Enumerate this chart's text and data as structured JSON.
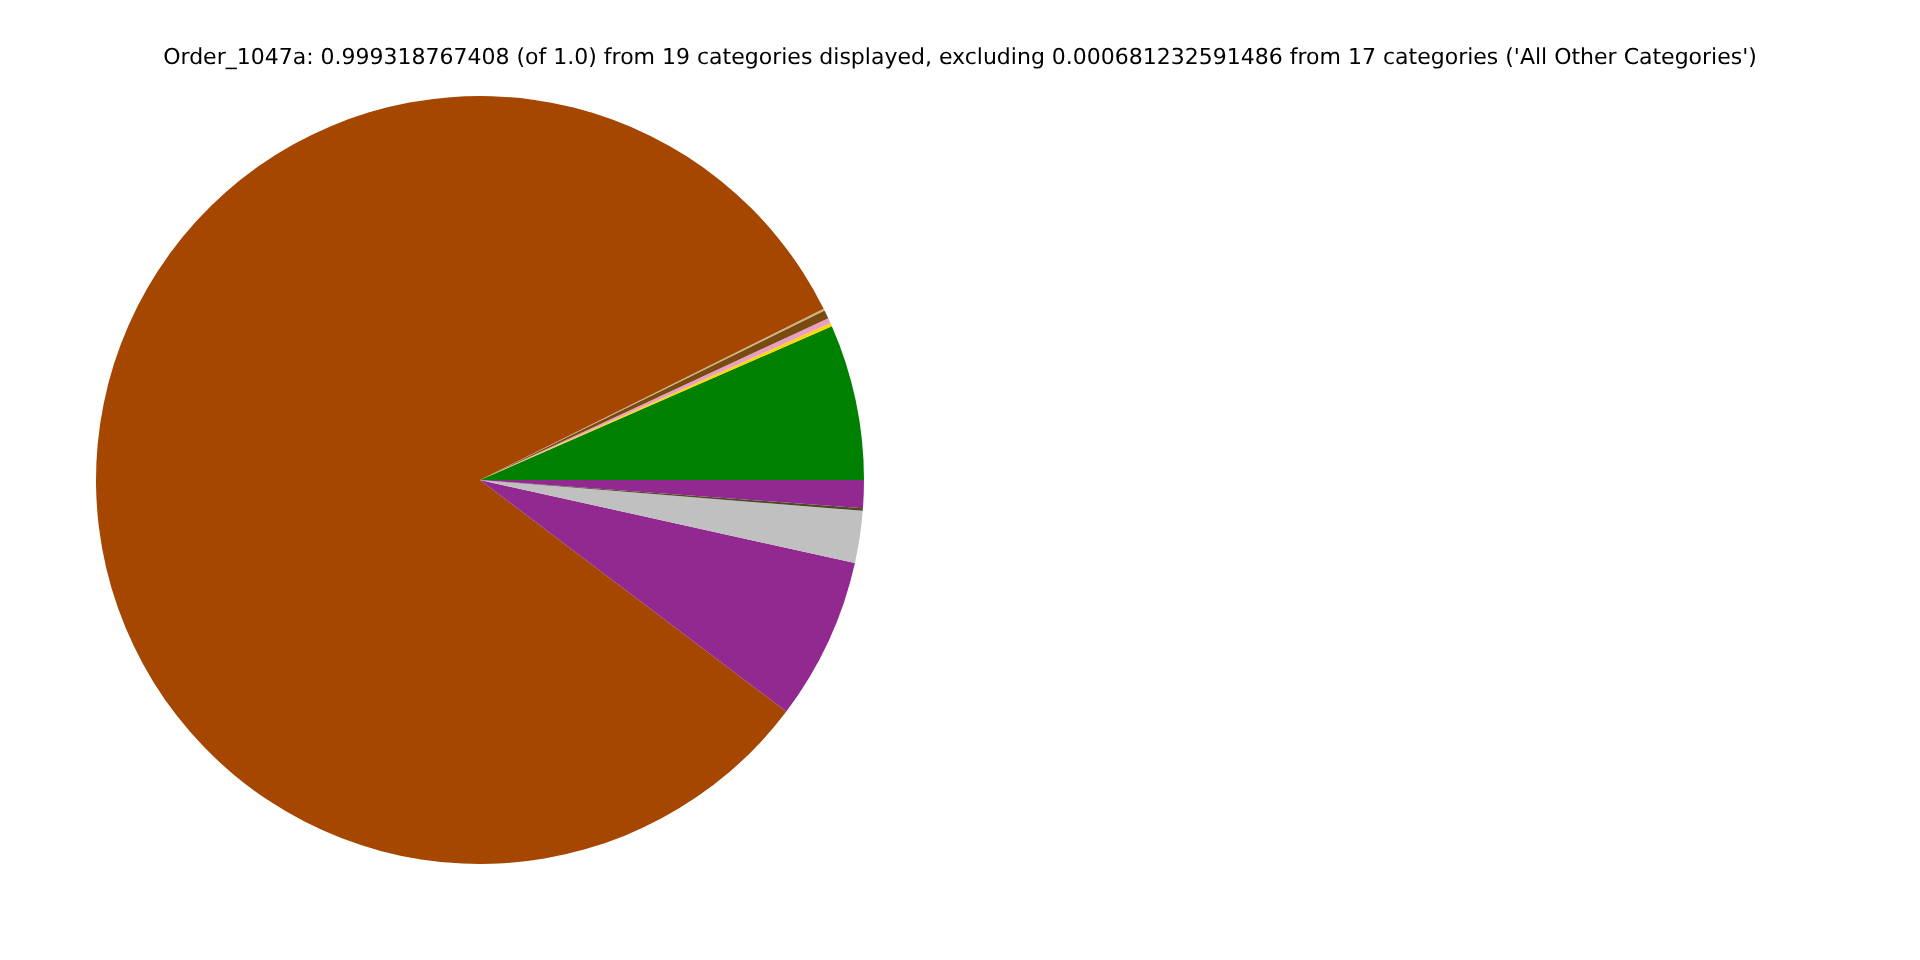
{
  "chart_data": {
    "type": "pie",
    "title": "Order_1047a: 0.999318767408 (of 1.0) from 19 categories displayed, excluding 0.000681232591486 from 17 categories ('All Other Categories')",
    "categories": [
      null,
      null,
      null,
      null,
      null,
      null,
      null,
      null,
      null,
      null
    ],
    "values": [
      6.56,
      0.14,
      0.22,
      0.36,
      0.08,
      82.34,
      6.83,
      2.19,
      0.11,
      1.17
    ],
    "colors": [
      "#008000",
      "#ffd700",
      "#e8a0c0",
      "#7a4a10",
      "#c8b080",
      "#a54700",
      "#922990",
      "#c0c0c0",
      "#4a4a20",
      "#922990"
    ],
    "legend": false
  }
}
